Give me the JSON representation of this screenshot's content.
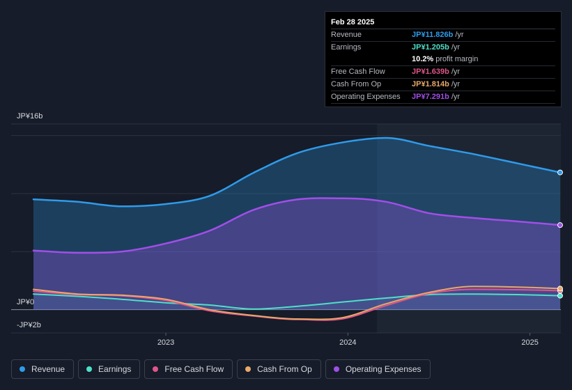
{
  "colors": {
    "background": "#161c29",
    "revenue": "#2f9bea",
    "earnings": "#4fe0c8",
    "free_cash_flow": "#e0558a",
    "cash_from_op": "#e8a96a",
    "operating_expenses": "#a24ee8",
    "grid": "#2c3240",
    "past_shade": "#1d2533"
  },
  "tooltip": {
    "date": "Feb 28 2025",
    "rows": [
      {
        "label": "Revenue",
        "value": "JP¥11.826b",
        "suffix": "/yr",
        "color": "#2f9bea"
      },
      {
        "label": "Earnings",
        "value": "JP¥1.205b",
        "suffix": "/yr",
        "color": "#4fe0c8"
      },
      {
        "label": "Free Cash Flow",
        "value": "JP¥1.639b",
        "suffix": "/yr",
        "color": "#e0558a"
      },
      {
        "label": "Cash From Op",
        "value": "JP¥1.814b",
        "suffix": "/yr",
        "color": "#e8a96a"
      },
      {
        "label": "Operating Expenses",
        "value": "JP¥7.291b",
        "suffix": "/yr",
        "color": "#a24ee8"
      }
    ],
    "margin_value": "10.2%",
    "margin_label": "profit margin"
  },
  "legend": [
    {
      "label": "Revenue",
      "color": "#2f9bea"
    },
    {
      "label": "Earnings",
      "color": "#4fe0c8"
    },
    {
      "label": "Free Cash Flow",
      "color": "#e0558a"
    },
    {
      "label": "Cash From Op",
      "color": "#e8a96a"
    },
    {
      "label": "Operating Expenses",
      "color": "#a24ee8"
    }
  ],
  "chart_data": {
    "type": "area",
    "title": "",
    "xlabel": "",
    "ylabel": "",
    "ylim": [
      -2,
      16
    ],
    "xlim": [
      2022.15,
      2025.17
    ],
    "y_tick_labels": [
      {
        "value": 16,
        "label": "JP¥16b"
      },
      {
        "value": 0,
        "label": "JP¥0"
      },
      {
        "value": -2,
        "label": "-JP¥2b"
      }
    ],
    "y_gridlines": [
      15,
      10,
      5,
      0
    ],
    "x_ticks": [
      {
        "value": 2023.0,
        "label": "2023"
      },
      {
        "value": 2024.0,
        "label": "2024"
      },
      {
        "value": 2025.0,
        "label": "2025"
      }
    ],
    "past_data_start": 2024.16,
    "x": [
      2022.17,
      2022.42,
      2022.67,
      2022.92,
      2023.17,
      2023.42,
      2023.67,
      2023.92,
      2024.17,
      2024.42,
      2024.67,
      2024.92,
      2025.16
    ],
    "series": [
      {
        "name": "Revenue",
        "key": "revenue",
        "fill": true,
        "values": [
          9.5,
          9.3,
          8.9,
          9.1,
          9.8,
          11.8,
          13.5,
          14.4,
          14.8,
          14.1,
          13.4,
          12.6,
          11.826
        ]
      },
      {
        "name": "Operating Expenses",
        "key": "operating_expenses",
        "fill": true,
        "values": [
          5.1,
          4.9,
          5.0,
          5.7,
          6.8,
          8.6,
          9.5,
          9.6,
          9.3,
          8.3,
          7.9,
          7.6,
          7.291
        ]
      },
      {
        "name": "Earnings",
        "key": "earnings",
        "fill": false,
        "values": [
          1.35,
          1.15,
          0.9,
          0.6,
          0.4,
          0.05,
          0.3,
          0.65,
          1.0,
          1.3,
          1.35,
          1.3,
          1.205
        ]
      },
      {
        "name": "Free Cash Flow",
        "key": "free_cash_flow",
        "fill": false,
        "values": [
          1.6,
          1.3,
          1.2,
          0.8,
          -0.1,
          -0.55,
          -0.85,
          -0.8,
          0.35,
          1.4,
          1.75,
          1.72,
          1.639
        ]
      },
      {
        "name": "Cash From Op",
        "key": "cash_from_op",
        "fill": false,
        "values": [
          1.75,
          1.35,
          1.25,
          0.9,
          0.0,
          -0.5,
          -0.8,
          -0.7,
          0.5,
          1.5,
          2.0,
          1.95,
          1.814
        ]
      }
    ]
  }
}
